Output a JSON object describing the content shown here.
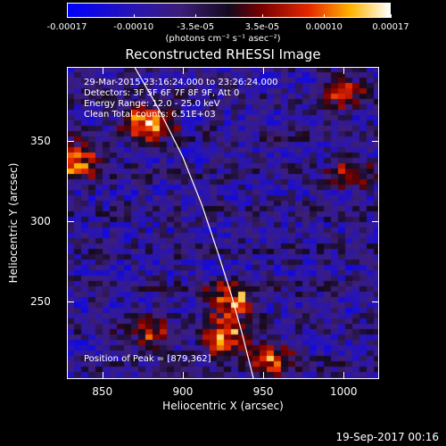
{
  "colorbar": {
    "tick_labels": [
      "-0.00017",
      "-0.00010",
      "-3.5e-05",
      "3.5e-05",
      "0.00010",
      "0.00017"
    ],
    "tick_values": [
      -0.00017,
      -0.0001,
      -3.5e-05,
      3.5e-05,
      0.0001,
      0.00017
    ],
    "units": "(photons cm⁻² s⁻¹ asec⁻²)"
  },
  "title": "Reconstructed RHESSI Image",
  "annotations": {
    "time_range": "29-Mar-2015 23:16:24.000 to 23:26:24.000",
    "detectors": "Detectors: 3F 5F 6F 7F 8F 9F, Att 0",
    "energy": "Energy Range: 12.0 - 25.0 keV",
    "method": "Clean    Total counts: 6.51E+03",
    "peak": "Position of Peak = [879,362]"
  },
  "chart_data": {
    "type": "heatmap",
    "title": "Reconstructed RHESSI Image",
    "xlabel": "Heliocentric X (arcsec)",
    "ylabel": "Heliocentric Y (arcsec)",
    "xlim": [
      828,
      1022
    ],
    "ylim": [
      202,
      396
    ],
    "x_ticks": [
      850,
      900,
      950,
      1000
    ],
    "y_ticks": [
      250,
      300,
      350
    ],
    "colorscale_range": [
      -0.00017,
      0.00017
    ],
    "peak": [
      879,
      362
    ],
    "limb_curve": [
      [
        870,
        396
      ],
      [
        885,
        370
      ],
      [
        900,
        340
      ],
      [
        912,
        310
      ],
      [
        922,
        280
      ],
      [
        930,
        255
      ],
      [
        937,
        230
      ],
      [
        942,
        210
      ],
      [
        944,
        202
      ]
    ],
    "bright_regions": [
      {
        "x": 879,
        "y": 362,
        "intensity": 1.0
      },
      {
        "x": 835,
        "y": 338,
        "intensity": 0.9
      },
      {
        "x": 930,
        "y": 250,
        "intensity": 0.85
      },
      {
        "x": 925,
        "y": 228,
        "intensity": 0.95
      },
      {
        "x": 955,
        "y": 215,
        "intensity": 0.7
      },
      {
        "x": 880,
        "y": 230,
        "intensity": 0.6
      },
      {
        "x": 1000,
        "y": 380,
        "intensity": 0.6
      },
      {
        "x": 1005,
        "y": 330,
        "intensity": 0.55
      }
    ]
  },
  "axes": {
    "x_tick_labels": [
      "850",
      "900",
      "950",
      "1000"
    ],
    "y_tick_labels": [
      "250",
      "300",
      "350"
    ],
    "xlabel": "Heliocentric X (arcsec)",
    "ylabel": "Heliocentric Y (arcsec)"
  },
  "footer": "19-Sep-2017 00:16"
}
